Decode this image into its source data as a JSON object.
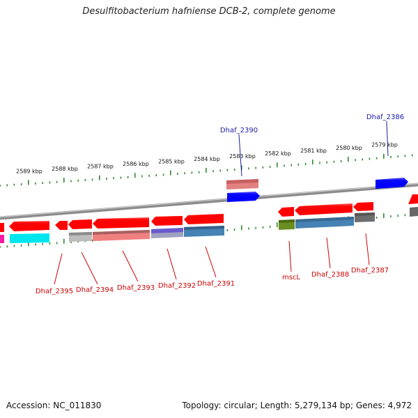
{
  "title": "Desulfitobacterium hafniense DCB-2, complete genome",
  "footer": {
    "accession": "Accession: NC_011830",
    "summary": "Topology: circular; Length: 5,279,134 bp; Genes: 4,972"
  },
  "colors": {
    "backbone": "#8c8c8c",
    "ticks": "#2e8b2e",
    "label_forward": "#1a1aa6",
    "label_reverse": "#cc0000"
  },
  "ticks": [
    {
      "label": "2589 kbp"
    },
    {
      "label": "2588 kbp"
    },
    {
      "label": "2587 kbp"
    },
    {
      "label": "2586 kbp"
    },
    {
      "label": "2585 kbp"
    },
    {
      "label": "2584 kbp"
    },
    {
      "label": "2583 kbp"
    },
    {
      "label": "2582 kbp"
    },
    {
      "label": "2581 kbp"
    },
    {
      "label": "2580 kbp"
    },
    {
      "label": "2579 kbp"
    }
  ],
  "gene_labels": [
    {
      "text": "Dhaf_2390",
      "strand": "forward"
    },
    {
      "text": "Dhaf_2386",
      "strand": "forward"
    },
    {
      "text": "Dhaf_2395",
      "strand": "reverse"
    },
    {
      "text": "Dhaf_2394",
      "strand": "reverse"
    },
    {
      "text": "Dhaf_2393",
      "strand": "reverse"
    },
    {
      "text": "Dhaf_2392",
      "strand": "reverse"
    },
    {
      "text": "Dhaf_2391",
      "strand": "reverse"
    },
    {
      "text": "mscL",
      "strand": "reverse"
    },
    {
      "text": "Dhaf_2388",
      "strand": "reverse"
    },
    {
      "text": "Dhaf_2387",
      "strand": "reverse"
    }
  ]
}
